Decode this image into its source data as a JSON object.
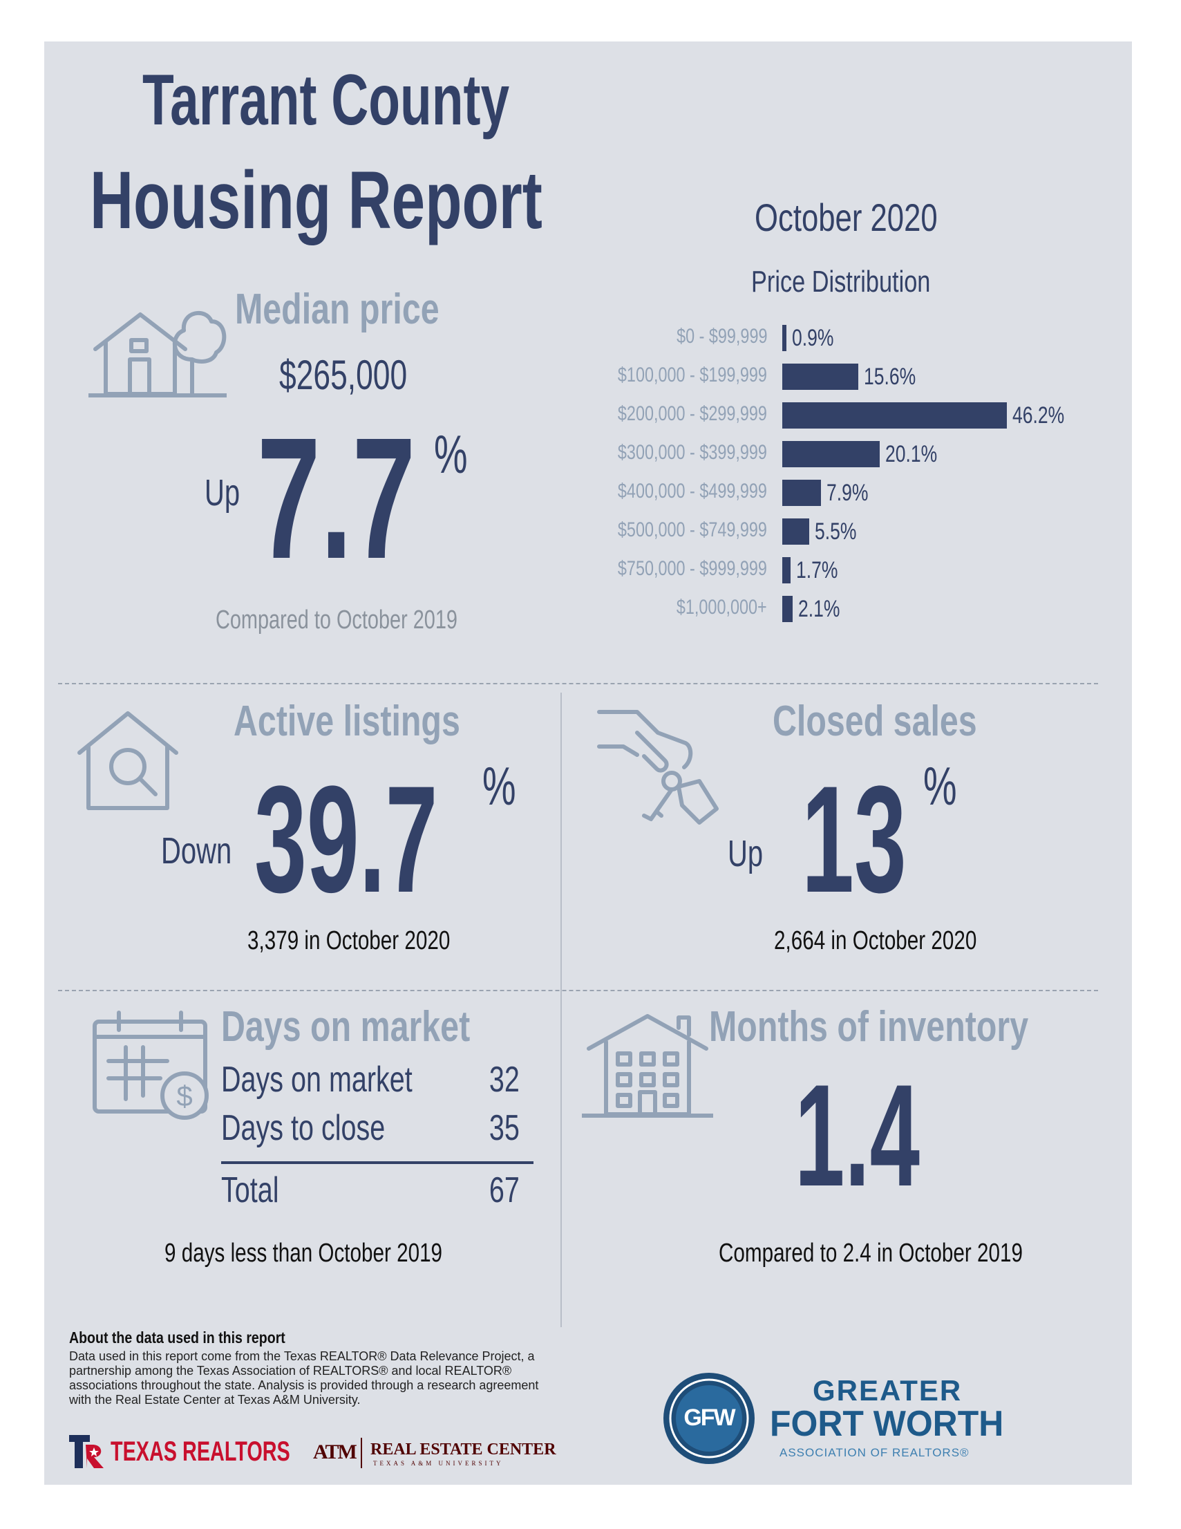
{
  "header": {
    "title_line1": "Tarrant County",
    "title_line2": "Housing Report",
    "month": "October 2020"
  },
  "median_price": {
    "title": "Median price",
    "price": "$265,000",
    "direction": "Up",
    "change": "7.7",
    "percent_sign": "%",
    "compare": "Compared to October 2019",
    "icon": "house-tree-icon"
  },
  "chart_data": {
    "type": "bar",
    "orientation": "horizontal",
    "title": "Price Distribution",
    "categories": [
      "$0 - $99,999",
      "$100,000 - $199,999",
      "$200,000 - $299,999",
      "$300,000 - $399,999",
      "$400,000 - $499,999",
      "$500,000 - $749,999",
      "$750,000 - $999,999",
      "$1,000,000+"
    ],
    "values": [
      0.9,
      15.6,
      46.2,
      20.1,
      7.9,
      5.5,
      1.7,
      2.1
    ],
    "value_labels": [
      "0.9%",
      "15.6%",
      "46.2%",
      "20.1%",
      "7.9%",
      "5.5%",
      "1.7%",
      "2.1%"
    ],
    "bar_color": "#334167"
  },
  "active_listings": {
    "title": "Active listings",
    "direction": "Down",
    "change": "39.7",
    "percent_sign": "%",
    "note": "3,379 in October 2020",
    "icon": "house-magnifier-icon"
  },
  "closed_sales": {
    "title": "Closed sales",
    "direction": "Up",
    "change": "13",
    "percent_sign": "%",
    "note": "2,664 in October 2020",
    "icon": "hand-keys-icon"
  },
  "days_on_market": {
    "title": "Days on market",
    "rows": [
      {
        "label": "Days on market",
        "value": "32"
      },
      {
        "label": "Days to close",
        "value": "35"
      }
    ],
    "total_label": "Total",
    "total_value": "67",
    "note": "9 days less than October 2019",
    "icon": "calendar-dollar-icon"
  },
  "months_inventory": {
    "title": "Months of inventory",
    "value": "1.4",
    "note": "Compared to 2.4 in October 2019",
    "icon": "apartment-building-icon"
  },
  "footer": {
    "about_heading": "About the data used in this report",
    "about_text": "Data used in this report come from the Texas REALTOR® Data Relevance Project, a partnership among the Texas Association of REALTORS® and local REALTOR® associations throughout the state. Analysis is provided through a research agreement with the Real Estate Center at Texas A&M University.",
    "texas_realtors": "TEXAS REALTORS",
    "atm": "ATM",
    "rec_line1": "REAL ESTATE CENTER",
    "rec_line2": "TEXAS A&M UNIVERSITY",
    "gfw_monogram": "GFW",
    "gfw_line1": "GREATER",
    "gfw_line2": "FORT WORTH",
    "gfw_line3": "ASSOCIATION OF REALTORS®"
  },
  "colors": {
    "navy": "#334167",
    "gray_blue": "#92a2b6",
    "panel_bg": "#dde0e6",
    "texas_red": "#c8102e",
    "gfw_blue": "#1e5a8a"
  }
}
